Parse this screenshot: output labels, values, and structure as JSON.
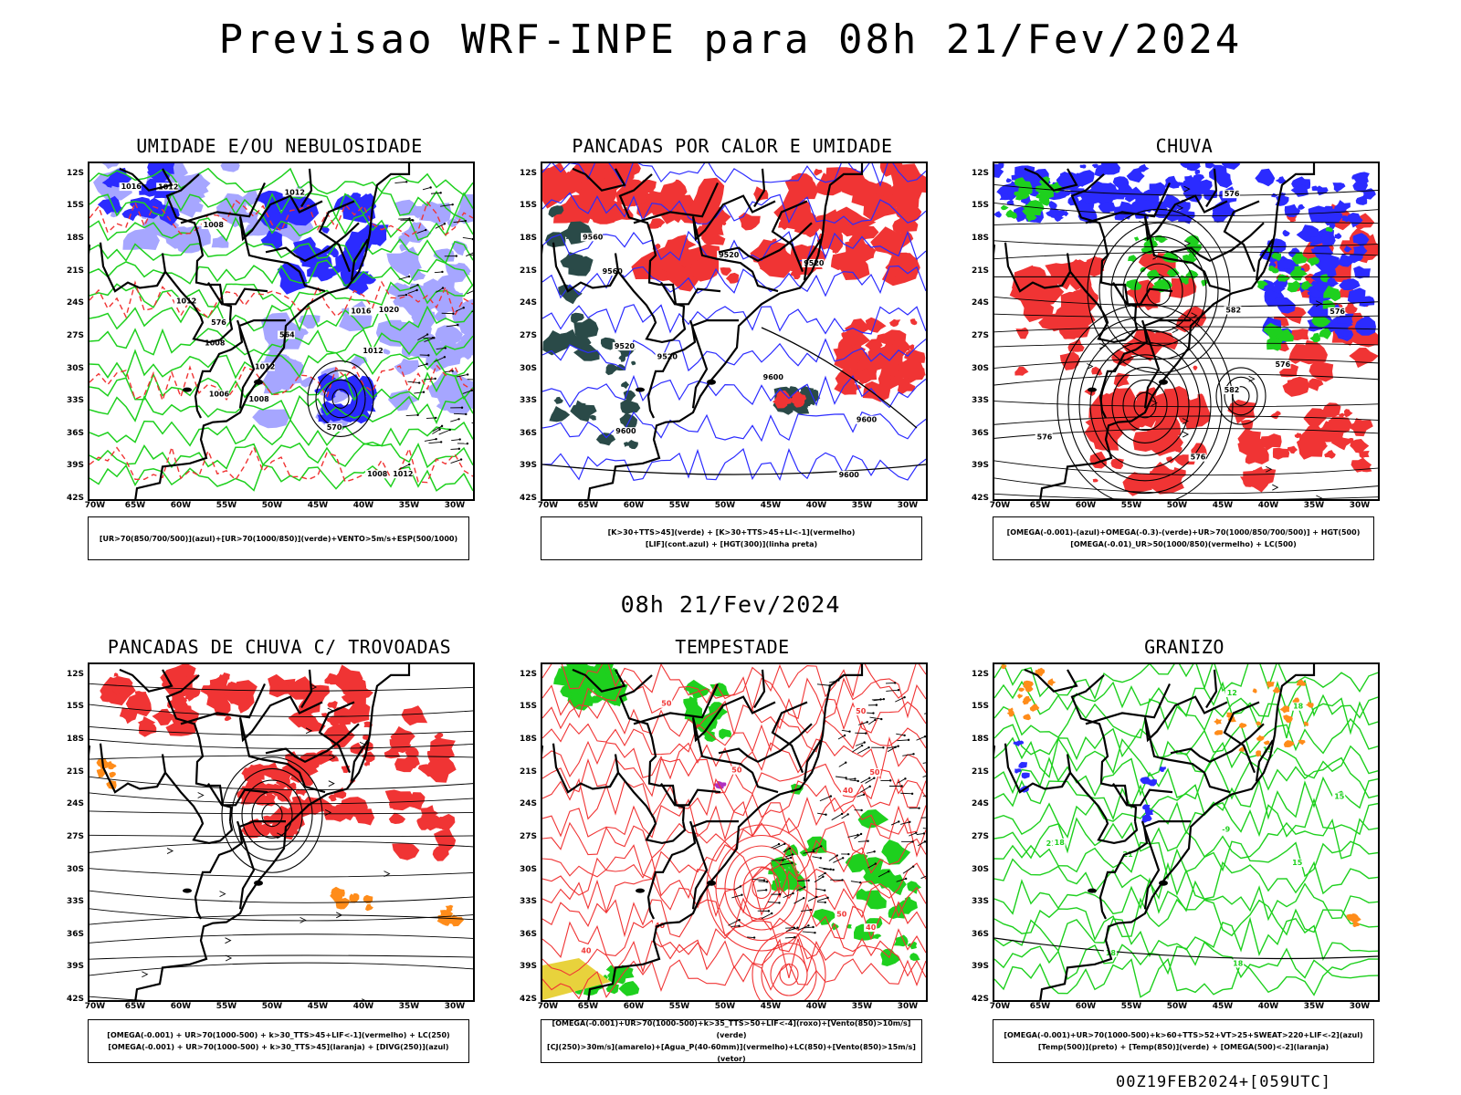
{
  "header": {
    "main_title": "Previsao WRF-INPE  para 08h 21/Fev/2024",
    "mid_date": "08h 21/Fev/2024",
    "footer_run": "00Z19FEB2024+[059UTC]"
  },
  "axes": {
    "lat_labels": [
      "12S",
      "15S",
      "18S",
      "21S",
      "24S",
      "27S",
      "30S",
      "33S",
      "36S",
      "39S",
      "42S"
    ],
    "lon_labels": [
      "70W",
      "65W",
      "60W",
      "55W",
      "50W",
      "45W",
      "40W",
      "35W",
      "30W"
    ]
  },
  "panels": [
    {
      "id": "umidade",
      "title": "UMIDADE E/OU NEBULOSIDADE",
      "legend": [
        "[UR>70(850/700/500)](azul)+[UR>70(1000/850)](verde)+VENTO>5m/s+ESP(500/1000)"
      ],
      "contour_labels": [
        "1012",
        "1012",
        "1012",
        "1012",
        "1012",
        "1008",
        "1008",
        "1008",
        "1006",
        "1016",
        "1020",
        "1012",
        "1016",
        "1008",
        "576",
        "570",
        "564"
      ]
    },
    {
      "id": "pancadas-calor",
      "title": "PANCADAS POR CALOR E UMIDADE",
      "legend": [
        "[K>30+TTS>45](verde) + [K>30+TTS>45+LI<-1](vermelho)",
        "[LIF](cont.azul) + [HGT(300)](linha preta)"
      ],
      "contour_labels": [
        "9600",
        "9520",
        "9600",
        "9560",
        "9600",
        "9560",
        "9600",
        "9520",
        "9520",
        "9520"
      ]
    },
    {
      "id": "chuva",
      "title": "CHUVA",
      "legend": [
        "[OMEGA(-0.001)-(azul)+OMEGA(-0.3)-(verde)+UR>70(1000/850/700/500)] + HGT(500)",
        "[OMEGA(-0.01)_UR>50(1000/850)(vermelho) + LC(500)"
      ],
      "contour_labels": [
        "582",
        "576",
        "576",
        "582",
        "576",
        "576",
        "576"
      ]
    },
    {
      "id": "pancadas-trovoadas",
      "title": "PANCADAS DE CHUVA C/ TROVOADAS",
      "legend": [
        "[OMEGA(-0.001) + UR>70(1000-500) + k>30_TTS>45+LIF<-1](vermelho) + LC(250)",
        "[OMEGA(-0.001) + UR>70(1000-500) + k>30_TTS>45](laranja) + [DIVG(250)](azul)"
      ]
    },
    {
      "id": "tempestade",
      "title": "TEMPESTADE",
      "legend": [
        "[OMEGA(-0.001)+UR>70(1000-500)+k>35_TTS>50+LIF<-4](roxo)+[Vento(850)>10m/s](verde)",
        "[CJ(250)>30m/s](amarelo)+[Agua_P(40-60mm)](vermelho)+LC(850)+[Vento(850)>15m/s](vetor)"
      ],
      "contour_labels": [
        "50",
        "50",
        "40",
        "50",
        "40",
        "50",
        "40",
        "40",
        "50"
      ]
    },
    {
      "id": "granizo",
      "title": "GRANIZO",
      "legend": [
        "[OMEGA(-0.001)+UR>70(1000-500)+k>60+TTS>52+VT>25+SWEAT>220+LIF<-2](azul)",
        "[Temp(500)](preto) + [Temp(850)](verde) + [OMEGA(500)<-2](laranja)"
      ],
      "contour_labels": [
        "-9",
        "15",
        "18",
        "21",
        "18",
        "15",
        "21",
        "18",
        "15",
        "18",
        "12"
      ]
    }
  ],
  "colors": {
    "blue": "#2b2bff",
    "light_blue": "#a6a6ff",
    "green": "#1ed01e",
    "red": "#f03434",
    "dark_teal": "#2a4a48",
    "orange": "#ff8c1a",
    "yellow": "#e8d23c",
    "purple": "#b030c0"
  }
}
